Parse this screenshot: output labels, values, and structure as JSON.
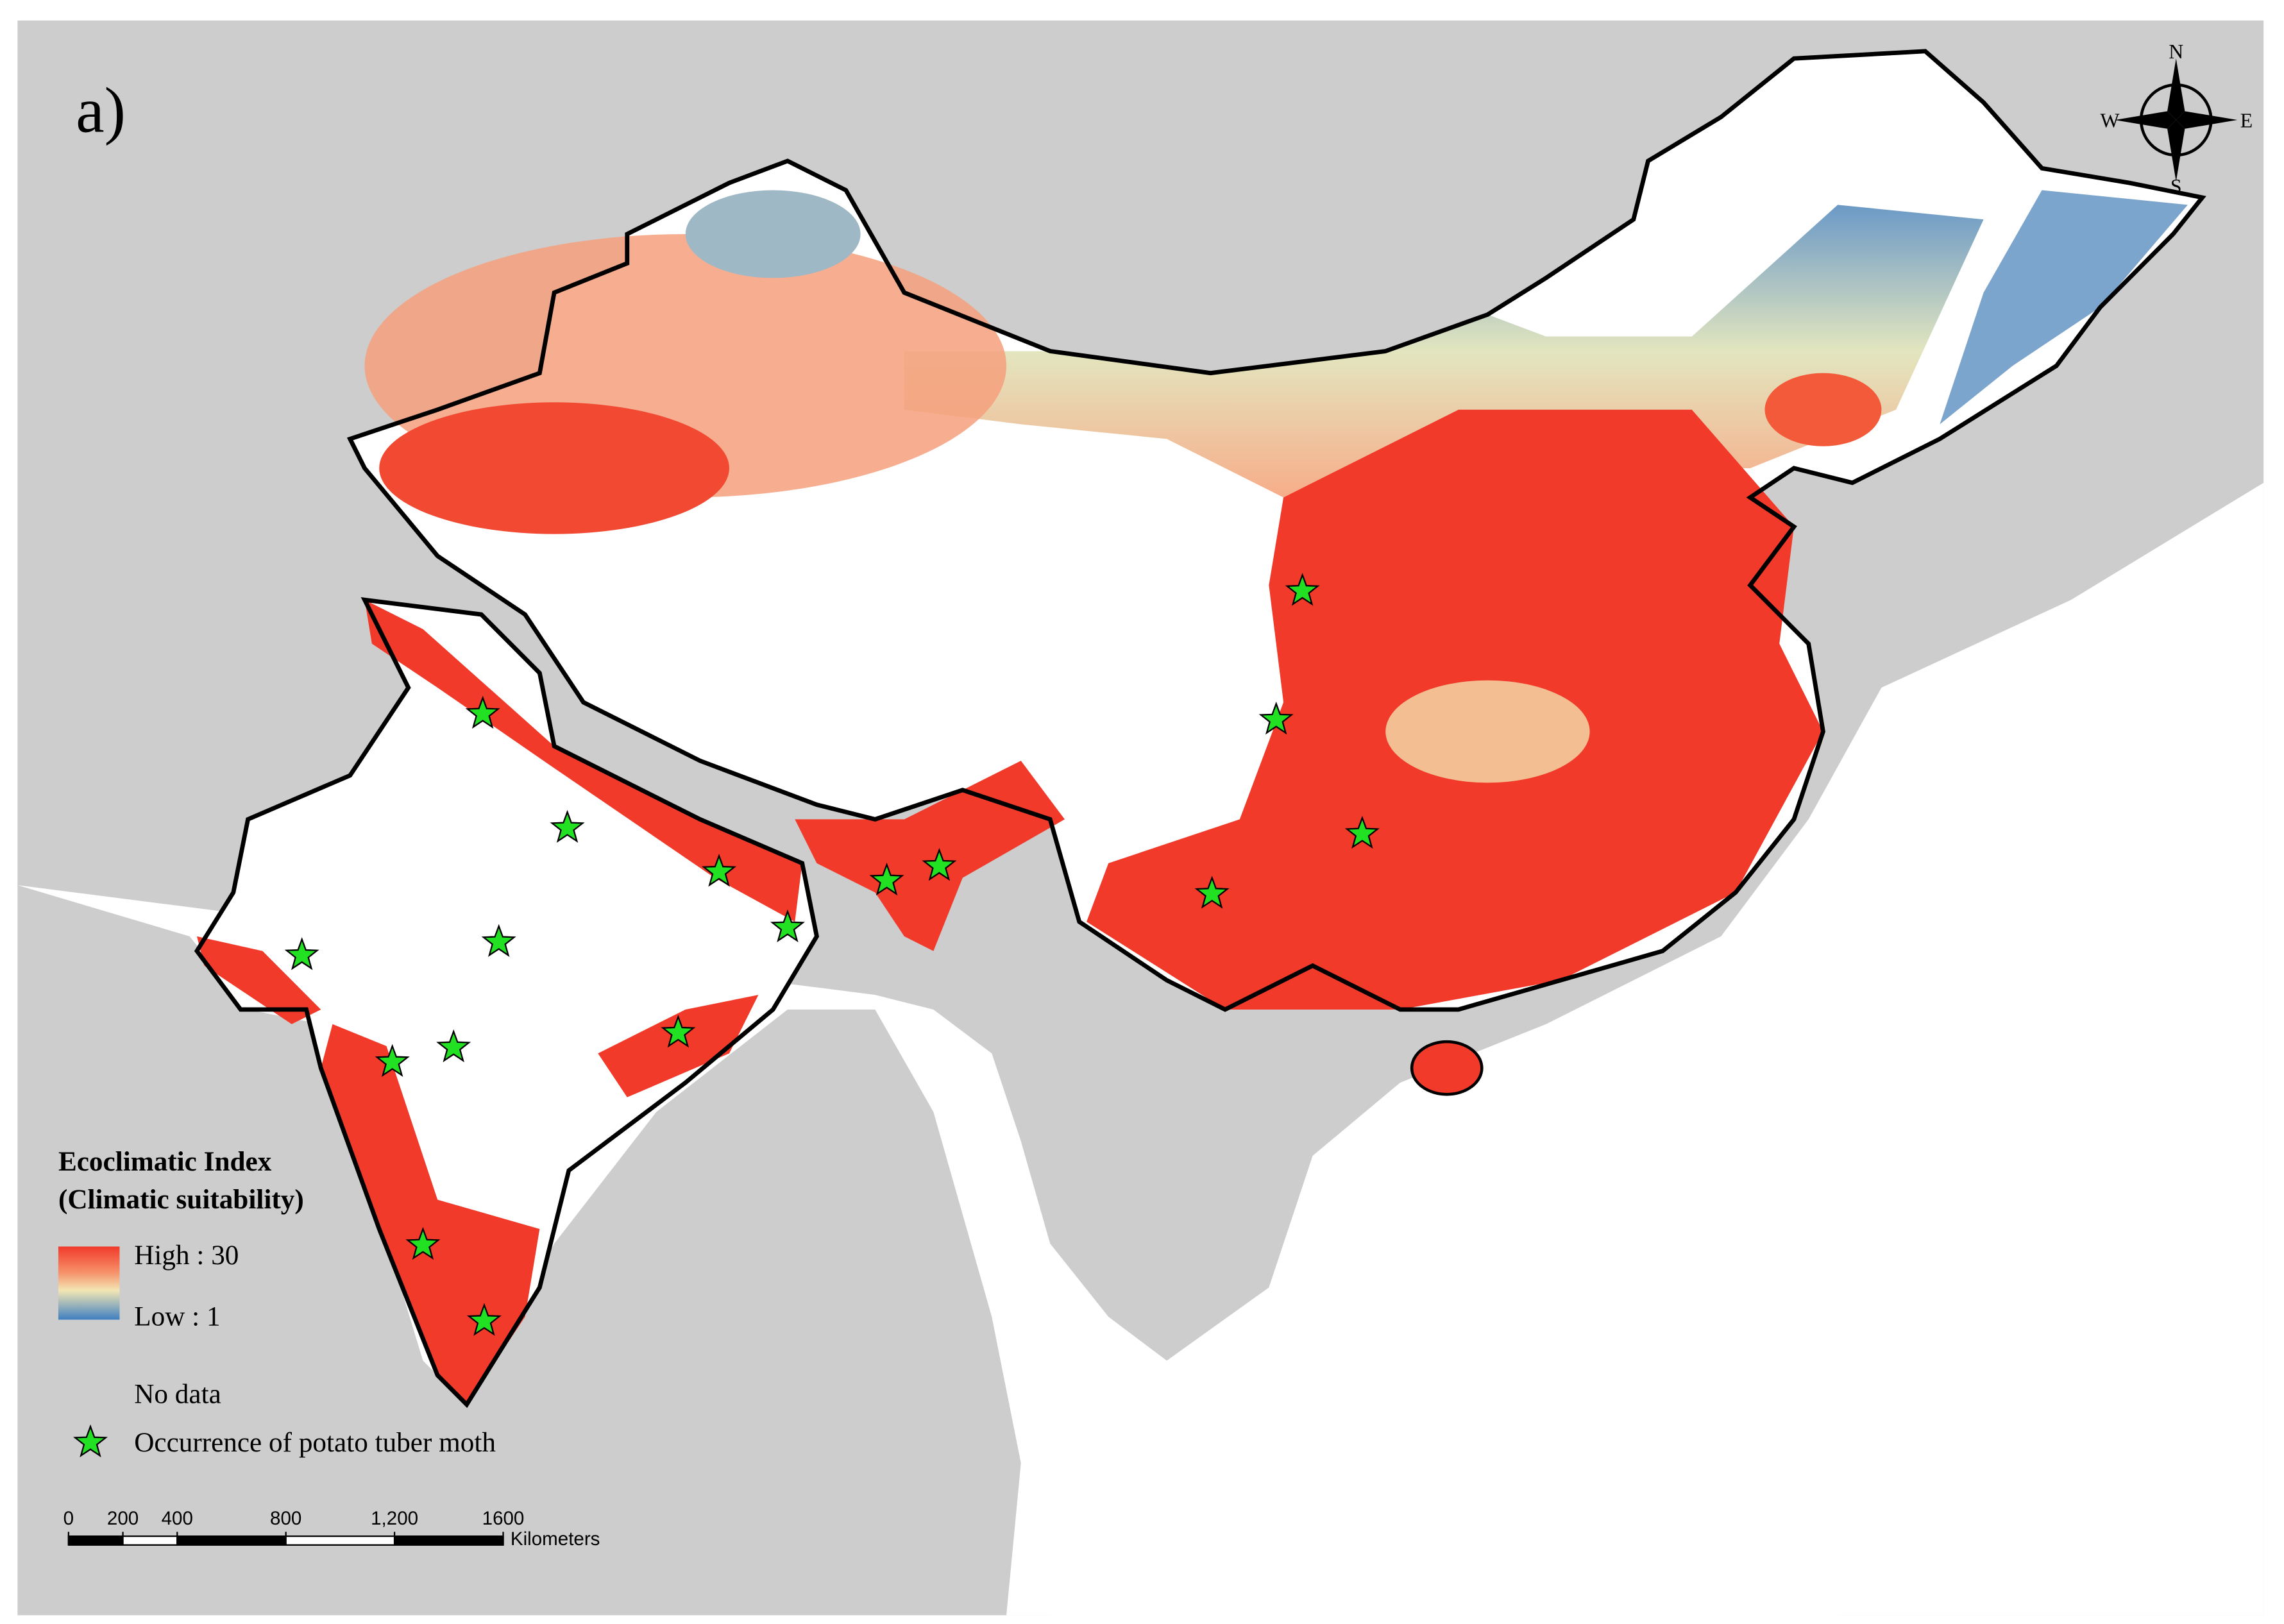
{
  "panel_label": "a)",
  "compass": {
    "north": "N",
    "east": "E",
    "south": "S",
    "west": "W"
  },
  "legend": {
    "title": "Ecoclimatic Index",
    "subtitle": "(Climatic suitability)",
    "high": "High : 30",
    "low": "Low : 1",
    "no_data": "No data",
    "occurrence": "Occurrence of potato tuber moth"
  },
  "scale_bar": {
    "ticks": [
      0,
      200,
      400,
      800,
      {
        "value": 1200,
        "label": "1,200"
      },
      1600
    ],
    "unit": "Kilometers"
  }
}
